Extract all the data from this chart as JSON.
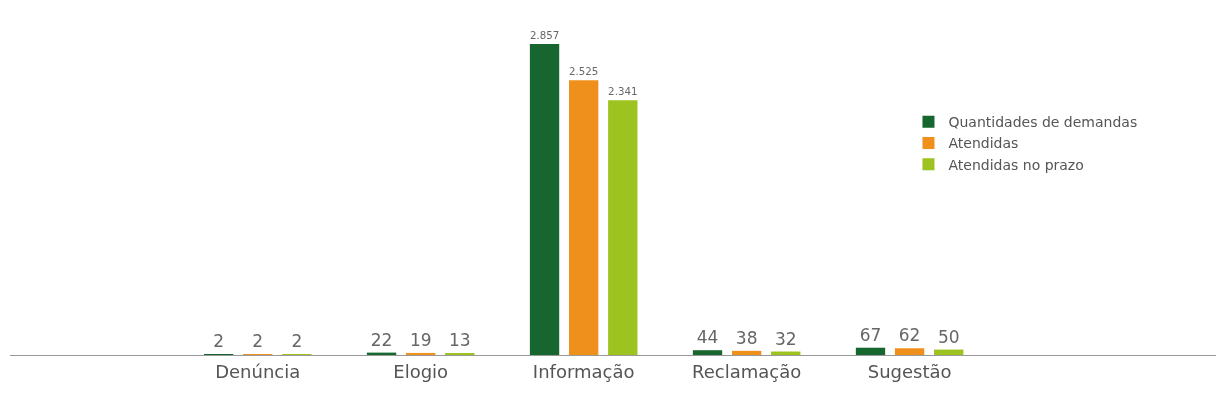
{
  "chart_data": {
    "type": "bar",
    "categories": [
      "Denúncia",
      "Elogio",
      "Informação",
      "Reclamação",
      "Sugestão"
    ],
    "legend": "right",
    "grid": false,
    "series": [
      {
        "name": "Quantidades de demandas",
        "color": "#17652f",
        "values": [
          2,
          22,
          2857,
          44,
          67
        ],
        "value_labels": [
          "2",
          "22",
          "2.857",
          "44",
          "67"
        ]
      },
      {
        "name": "Atendidas",
        "color": "#f0901c",
        "values": [
          2,
          19,
          2525,
          38,
          62
        ],
        "value_labels": [
          "2",
          "19",
          "2.525",
          "38",
          "62"
        ]
      },
      {
        "name": "Atendidas no prazo",
        "color": "#9cc31f",
        "values": [
          2,
          13,
          2341,
          32,
          50
        ],
        "value_labels": [
          "2",
          "13",
          "2.341",
          "32",
          "50"
        ]
      }
    ]
  }
}
